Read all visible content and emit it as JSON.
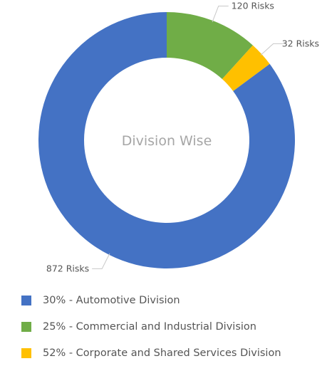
{
  "chart_data": {
    "type": "pie",
    "title": "Division Wise",
    "slices": [
      {
        "callout": "872 Risks",
        "value": 872,
        "color": "#4472c4"
      },
      {
        "callout": "120 Risks",
        "value": 120,
        "color": "#70ad47"
      },
      {
        "callout": "32 Risks",
        "value": 32,
        "color": "#ffc000"
      }
    ],
    "legend": [
      {
        "label": "30% - Automotive Division",
        "color": "#4472c4"
      },
      {
        "label": "25% - Commercial and Industrial Division",
        "color": "#70ad47"
      },
      {
        "label": "52% - Corporate and Shared Services Division",
        "color": "#ffc000"
      }
    ],
    "legend_placement": "bottom"
  }
}
